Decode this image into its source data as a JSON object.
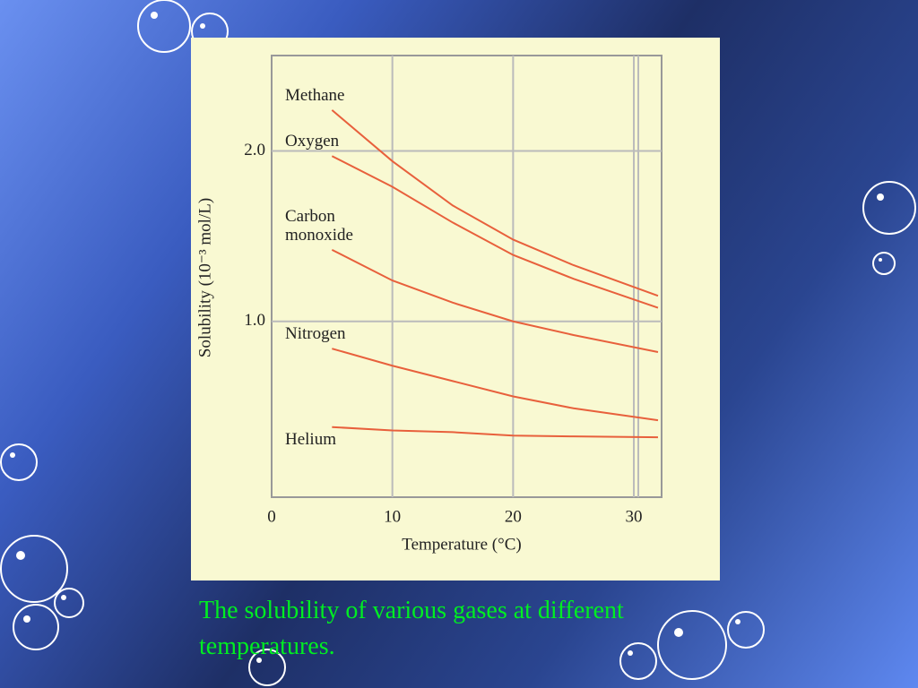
{
  "chart_data": {
    "type": "line",
    "x_label": "Temperature (°C)",
    "y_label": "Solubility (10⁻³ mol/L)",
    "x": [
      5,
      10,
      15,
      20,
      25,
      32
    ],
    "series": [
      {
        "name": "Methane",
        "color": "#e8603c",
        "values": [
          2.24,
          1.94,
          1.68,
          1.48,
          1.33,
          1.15
        ]
      },
      {
        "name": "Oxygen",
        "color": "#e8603c",
        "values": [
          1.97,
          1.79,
          1.58,
          1.39,
          1.25,
          1.08
        ]
      },
      {
        "name": "Carbon monoxide",
        "color": "#e8603c",
        "values": [
          1.42,
          1.24,
          1.11,
          1.0,
          0.92,
          0.82
        ]
      },
      {
        "name": "Nitrogen",
        "color": "#e8603c",
        "values": [
          0.84,
          0.74,
          0.65,
          0.56,
          0.49,
          0.42
        ]
      },
      {
        "name": "Helium",
        "color": "#e8603c",
        "values": [
          0.38,
          0.36,
          0.35,
          0.33,
          0.325,
          0.32
        ]
      }
    ],
    "xlim": [
      0,
      32.3
    ],
    "xticks": [
      0,
      10,
      20,
      30
    ],
    "ylim": [
      0,
      2.56
    ],
    "yticks": [
      {
        "value": 1,
        "label": "1.0"
      },
      {
        "value": 2,
        "label": "2.0"
      }
    ],
    "grid": true
  },
  "caption": "The solubility of various gases at different temperatures."
}
